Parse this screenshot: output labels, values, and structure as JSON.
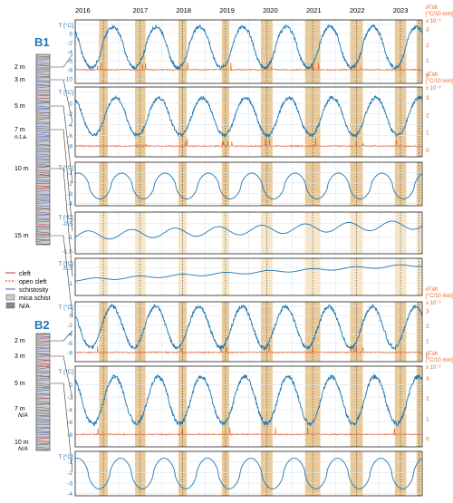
{
  "years": [
    "2016",
    "2017",
    "2018",
    "2019",
    "2020",
    "2021",
    "2022",
    "2023"
  ],
  "colors": {
    "temperature": "#1f77b4",
    "derivative": "#e8622a",
    "band_dark": "#e2b774",
    "band_light": "#f7e6c8",
    "grid": "#d9e6f0",
    "cleft": "#d62728",
    "schistosity": "#4a5ab8",
    "mica": "#cccccc",
    "na": "#8a8a8a"
  },
  "boreholes": [
    {
      "name": "B1",
      "depths": [
        "2 m",
        "3 m",
        "5 m",
        "7 m",
        "10 m",
        "15 m"
      ],
      "notes": [
        "n.t.a."
      ]
    },
    {
      "name": "B2",
      "depths": [
        "2 m",
        "3 m",
        "5 m",
        "7 m",
        "10 m"
      ],
      "notes": [
        "N/A",
        "N/A"
      ]
    }
  ],
  "legend": {
    "items": [
      "cleft",
      "open cleft",
      "schistosity",
      "mica schist",
      "N/A"
    ]
  },
  "axis": {
    "t_label": "T [°C]",
    "dt_label_line1": "∂T/∂t",
    "dt_label_line2": "[°C/10 min]",
    "dt_scale": "x 10⁻³"
  },
  "chart_data": [
    {
      "type": "line",
      "panel": "B1 2 m",
      "ylim": [
        -11,
        3
      ],
      "yticks": [
        2,
        0,
        -2,
        -4,
        -6,
        -8,
        -10
      ],
      "y2lim": [
        -0.5,
        3.6
      ],
      "y2ticks": [
        3,
        2,
        1,
        0
      ],
      "xlim": [
        2016,
        2024
      ],
      "series": [
        {
          "kind": "temperature",
          "mean": -3,
          "amplitude": 4.5,
          "shape": 1.2,
          "phase": 0.62
        },
        {
          "kind": "derivative",
          "base": -8,
          "spikes": true
        }
      ]
    },
    {
      "type": "line",
      "panel": "B1 3 m",
      "ylim": [
        -10,
        3
      ],
      "yticks": [
        2,
        0,
        -2,
        -4,
        -6,
        -8
      ],
      "y2lim": [
        -0.4,
        3.6
      ],
      "y2ticks": [
        3,
        2,
        1,
        0
      ],
      "xlim": [
        2016,
        2024
      ],
      "series": [
        {
          "kind": "temperature",
          "mean": -2.5,
          "amplitude": 3.5,
          "shape": 1.1,
          "phase": 0.68
        },
        {
          "kind": "derivative",
          "base": -8,
          "spikes": true
        }
      ]
    },
    {
      "type": "line",
      "panel": "B1 5 m",
      "ylim": [
        -4.2,
        0
      ],
      "yticks": [
        -1,
        -2,
        -3,
        -4
      ],
      "xlim": [
        2016,
        2024
      ],
      "series": [
        {
          "kind": "temperature",
          "mean": -2.3,
          "amplitude": 1.25,
          "shape": 1.6,
          "phase": 0.82
        }
      ]
    },
    {
      "type": "line",
      "panel": "B1 10 m",
      "ylim": [
        -1.6,
        -0.1
      ],
      "yticks": [
        -0.5,
        -1,
        -1.5
      ],
      "xlim": [
        2016,
        2024
      ],
      "series": [
        {
          "kind": "temperature",
          "mean": -0.95,
          "amplitude": 0.16,
          "shape": 1,
          "phase": 0.05,
          "trend": 0.05
        }
      ]
    },
    {
      "type": "line",
      "panel": "B1 15 m",
      "ylim": [
        -1.4,
        -0.2
      ],
      "yticks": [
        -0.5,
        -1
      ],
      "xlim": [
        2016,
        2024
      ],
      "series": [
        {
          "kind": "temperature",
          "mean": -0.9,
          "amplitude": 0.04,
          "shape": 1,
          "phase": 0.2,
          "trend": 0.06
        }
      ]
    },
    {
      "type": "line",
      "panel": "B2 2 m",
      "ylim": [
        -10,
        3
      ],
      "yticks": [
        2,
        0,
        -2,
        -4,
        -6,
        -8
      ],
      "y2lim": [
        -0.4,
        3.6
      ],
      "y2ticks": [
        3,
        2,
        1,
        0
      ],
      "xlim": [
        2016,
        2024
      ],
      "series": [
        {
          "kind": "temperature",
          "mean": -2.5,
          "amplitude": 4.5,
          "shape": 1,
          "phase": 0.6
        },
        {
          "kind": "derivative",
          "base": -8,
          "spikes": true
        }
      ]
    },
    {
      "type": "line",
      "panel": "B2 3 m",
      "ylim": [
        -10,
        3
      ],
      "yticks": [
        2,
        0,
        -2,
        -4,
        -6,
        -8
      ],
      "y2lim": [
        -0.4,
        3.6
      ],
      "y2ticks": [
        3,
        2,
        1,
        0
      ],
      "xlim": [
        2016,
        2024
      ],
      "series": [
        {
          "kind": "temperature",
          "mean": -2.5,
          "amplitude": 3.8,
          "shape": 1.1,
          "phase": 0.66
        },
        {
          "kind": "derivative",
          "base": -8,
          "spikes": true
        }
      ]
    },
    {
      "type": "line",
      "panel": "B2 5 m",
      "ylim": [
        -4.2,
        0
      ],
      "yticks": [
        -1,
        -2,
        -3,
        -4
      ],
      "xlim": [
        2016,
        2024
      ],
      "series": [
        {
          "kind": "temperature",
          "mean": -2.1,
          "amplitude": 1.45,
          "shape": 1.6,
          "phase": 0.8
        }
      ]
    }
  ],
  "bands": [
    {
      "from": 2016.55,
      "to": 2016.75
    },
    {
      "from": 2017.38,
      "to": 2017.62
    },
    {
      "from": 2018.38,
      "to": 2018.57
    },
    {
      "from": 2019.38,
      "to": 2019.55
    },
    {
      "from": 2020.28,
      "to": 2020.55
    },
    {
      "from": 2021.3,
      "to": 2021.65
    },
    {
      "from": 2022.34,
      "to": 2022.63
    },
    {
      "from": 2023.37,
      "to": 2023.63
    },
    {
      "from": 2023.87,
      "to": 2023.98
    }
  ]
}
